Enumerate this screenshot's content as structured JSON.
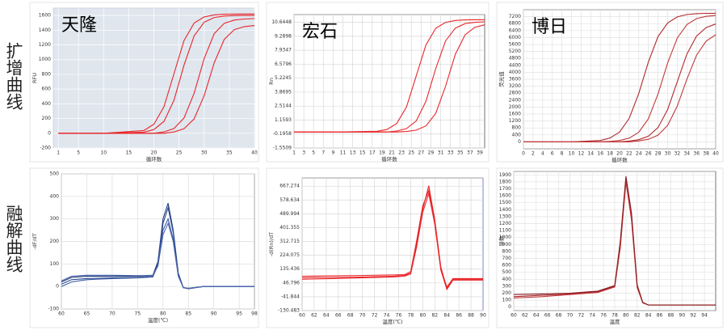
{
  "row_labels": [
    "扩增曲线",
    "融解曲线"
  ],
  "chart_data": [
    {
      "type": "line",
      "title": "天隆",
      "x_label": "循环数",
      "y_label": "RFU",
      "x": [
        1,
        10,
        18,
        20,
        22,
        24,
        26,
        28,
        30,
        32,
        34,
        36,
        38,
        40
      ],
      "series": [
        {
          "color": "#e8262a",
          "values": [
            0,
            0,
            37,
            123,
            361,
            810,
            1259,
            1497,
            1580,
            1608,
            1616,
            1619,
            1620,
            1620
          ]
        },
        {
          "color": "#e8262a",
          "values": [
            0,
            0,
            15,
            50,
            161,
            449,
            925,
            1322,
            1509,
            1573,
            1592,
            1598,
            1600,
            1600
          ]
        },
        {
          "color": "#e8262a",
          "values": [
            0,
            0,
            0,
            0,
            19,
            65,
            207,
            544,
            1016,
            1353,
            1494,
            1537,
            1552,
            1557
          ]
        },
        {
          "color": "#e8262a",
          "values": [
            0,
            0,
            0,
            0,
            0,
            18,
            62,
            195,
            512,
            958,
            1275,
            1408,
            1449,
            1463
          ]
        }
      ],
      "xlim": [
        0,
        40
      ],
      "xticks": [
        1,
        5,
        10,
        15,
        20,
        25,
        30,
        35,
        40
      ],
      "ylim": [
        -200,
        1700
      ],
      "yticks": [
        -200,
        0,
        200,
        400,
        600,
        800,
        1000,
        1200,
        1400,
        1600
      ],
      "grid": true
    },
    {
      "type": "line",
      "title": "宏石",
      "x_label": "循环数",
      "y_label": "Rn",
      "x": [
        1,
        10,
        18,
        20,
        22,
        24,
        26,
        28,
        30,
        32,
        34,
        36,
        38,
        40
      ],
      "series": [
        {
          "color": "#e8262a",
          "values": [
            0,
            0,
            0.07,
            0.25,
            0.83,
            2.43,
            5.45,
            8.47,
            10.07,
            10.65,
            10.83,
            10.88,
            10.9,
            10.9
          ]
        },
        {
          "color": "#e8262a",
          "values": [
            0,
            0,
            0,
            0,
            0.1,
            0.33,
            1.08,
            3.0,
            6.18,
            8.84,
            10.09,
            10.52,
            10.65,
            10.69
          ]
        },
        {
          "color": "#e8262a",
          "values": [
            0,
            0,
            0,
            0,
            0,
            0.05,
            0.18,
            0.6,
            1.82,
            4.45,
            7.55,
            9.44,
            10.17,
            10.4
          ]
        }
      ],
      "xlim": [
        1,
        40
      ],
      "xticks": [
        1,
        3,
        5,
        7,
        9,
        11,
        13,
        15,
        17,
        19,
        21,
        23,
        25,
        27,
        29,
        31,
        33,
        35,
        37,
        39
      ],
      "ylim": [
        -1.5509,
        11.4
      ],
      "yticks": [
        -1.5509,
        -0.1958,
        1.1593,
        2.5144,
        3.8695,
        5.2245,
        6.5796,
        7.9347,
        9.2898,
        10.6448
      ],
      "grid": true
    },
    {
      "type": "line",
      "title": "博日",
      "x_label": "循环数",
      "y_label": "荧光值",
      "x": [
        0,
        10,
        16,
        18,
        20,
        22,
        24,
        26,
        28,
        30,
        32,
        34,
        36,
        38,
        40
      ],
      "series": [
        {
          "color": "#b0282c",
          "values": [
            0,
            0,
            81,
            218,
            561,
            1350,
            2792,
            4596,
            6050,
            6839,
            7184,
            7319,
            7370,
            7389,
            7396
          ]
        },
        {
          "color": "#c0393c",
          "values": [
            0,
            0,
            0,
            30,
            81,
            215,
            553,
            1332,
            2754,
            4534,
            5968,
            6746,
            7087,
            7220,
            7270
          ]
        },
        {
          "color": "#b0282c",
          "values": [
            0,
            0,
            0,
            0,
            0,
            46,
            124,
            327,
            822,
            1855,
            3450,
            5044,
            6079,
            6571,
            6778
          ]
        },
        {
          "color": "#c0393c",
          "values": [
            0,
            0,
            0,
            0,
            0,
            0,
            55,
            147,
            385,
            948,
            2051,
            3596,
            4973,
            5792,
            6160
          ]
        }
      ],
      "xlim": [
        0,
        40
      ],
      "xticks": [
        0,
        2,
        4,
        6,
        8,
        10,
        12,
        14,
        16,
        18,
        20,
        22,
        24,
        26,
        28,
        30,
        32,
        34,
        36,
        38,
        40
      ],
      "ylim": [
        -400,
        7600
      ],
      "yticks": [
        0,
        400,
        800,
        1200,
        1600,
        2000,
        2400,
        2800,
        3200,
        3600,
        4000,
        4400,
        4800,
        5200,
        5600,
        6000,
        6400,
        6800,
        7200
      ],
      "grid": true
    },
    {
      "type": "line",
      "x_label": "温度(℃)",
      "y_label": "-dF/dT",
      "x": [
        60,
        62,
        65,
        70,
        75,
        78,
        79,
        80,
        81,
        82,
        83,
        84,
        85,
        88,
        90,
        95,
        98
      ],
      "series": [
        {
          "color": "#1f3a7a",
          "values": [
            20,
            40,
            45,
            45,
            45,
            50,
            110,
            300,
            370,
            250,
            60,
            -5,
            -10,
            0,
            0,
            0,
            0
          ]
        },
        {
          "color": "#2b4a8f",
          "values": [
            10,
            30,
            35,
            38,
            40,
            45,
            100,
            280,
            350,
            240,
            55,
            -5,
            -10,
            0,
            0,
            0,
            0
          ]
        },
        {
          "color": "#3d5ba3",
          "values": [
            0,
            20,
            30,
            35,
            38,
            42,
            95,
            250,
            300,
            210,
            50,
            -5,
            -8,
            0,
            0,
            0,
            0
          ]
        },
        {
          "color": "#4a67ad",
          "values": [
            25,
            45,
            50,
            50,
            48,
            50,
            90,
            230,
            280,
            200,
            45,
            -5,
            -8,
            0,
            0,
            0,
            0
          ]
        }
      ],
      "xlim": [
        60,
        98
      ],
      "xticks": [
        60,
        65,
        70,
        75,
        80,
        85,
        90,
        95,
        98
      ],
      "ylim": [
        -100,
        500
      ],
      "yticks": [
        -100,
        0,
        100,
        200,
        300,
        400,
        500
      ],
      "grid": true
    },
    {
      "type": "line",
      "x_label": "温度(℃)",
      "y_label": "-d(Rn)/dT",
      "x": [
        60,
        65,
        70,
        75,
        77,
        78,
        79,
        80,
        81,
        82,
        83,
        84,
        85,
        86,
        90
      ],
      "series": [
        {
          "color": "#e8262a",
          "values": [
            80,
            82,
            85,
            90,
            95,
            110,
            300,
            520,
            670,
            450,
            150,
            10,
            70,
            70,
            70
          ]
        },
        {
          "color": "#e8262a",
          "values": [
            90,
            92,
            95,
            98,
            100,
            120,
            320,
            540,
            640,
            430,
            140,
            20,
            75,
            75,
            75
          ]
        },
        {
          "color": "#e8262a",
          "values": [
            70,
            75,
            80,
            85,
            90,
            105,
            280,
            500,
            620,
            420,
            130,
            5,
            65,
            65,
            65
          ]
        }
      ],
      "xlim": [
        60,
        90
      ],
      "xticks": [
        60,
        62,
        64,
        66,
        68,
        70,
        72,
        74,
        76,
        78,
        80,
        82,
        84,
        86,
        88,
        90
      ],
      "ylim": [
        -130.483,
        720
      ],
      "yticks": [
        -130.483,
        -41.844,
        46.796,
        135.436,
        224.075,
        312.715,
        401.355,
        489.994,
        578.634,
        667.274
      ],
      "grid": true
    },
    {
      "type": "line",
      "x_label": "温度",
      "y_label": "导数",
      "x": [
        60,
        65,
        70,
        75,
        78,
        79,
        80,
        81,
        82,
        83,
        84,
        86,
        90,
        96
      ],
      "series": [
        {
          "color": "#a02428",
          "values": [
            150,
            170,
            190,
            220,
            300,
            900,
            1850,
            1300,
            300,
            60,
            30,
            30,
            30,
            30
          ]
        },
        {
          "color": "#c0393c",
          "values": [
            130,
            150,
            180,
            210,
            290,
            850,
            1800,
            1250,
            280,
            60,
            30,
            30,
            30,
            30
          ]
        },
        {
          "color": "#8a1c20",
          "values": [
            180,
            190,
            200,
            230,
            310,
            950,
            1880,
            1350,
            320,
            70,
            30,
            30,
            30,
            30
          ]
        }
      ],
      "xlim": [
        60,
        96
      ],
      "xticks": [
        60,
        62,
        64,
        66,
        68,
        70,
        72,
        74,
        76,
        78,
        80,
        82,
        84,
        86,
        88,
        90,
        92,
        94
      ],
      "ylim": [
        -50,
        1950
      ],
      "yticks": [
        0,
        100,
        200,
        300,
        400,
        500,
        600,
        700,
        800,
        900,
        1000,
        1100,
        1200,
        1300,
        1400,
        1500,
        1600,
        1700,
        1800,
        1900
      ],
      "grid": true
    }
  ]
}
